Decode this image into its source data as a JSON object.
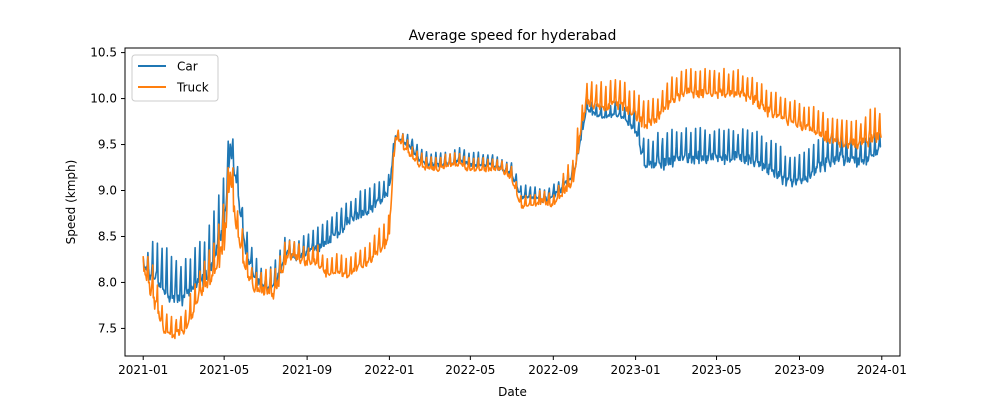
{
  "chart_data": {
    "type": "line",
    "title": "Average speed for hyderabad",
    "xlabel": "Date",
    "ylabel": "Speed (kmph)",
    "xlim": [
      "2020-12-05",
      "2024-01-28"
    ],
    "ylim": [
      7.2,
      10.55
    ],
    "x_ticks": [
      "2021-01",
      "2021-05",
      "2021-09",
      "2022-01",
      "2022-05",
      "2022-09",
      "2023-01",
      "2023-05",
      "2023-09",
      "2024-01"
    ],
    "y_ticks": [
      "7.5",
      "8.0",
      "8.5",
      "9.0",
      "9.5",
      "10.0",
      "10.5"
    ],
    "legend_position": "upper-left",
    "grid": false,
    "series": [
      {
        "name": "Car",
        "color": "#1f77b4",
        "x": [
          "2021-01-01",
          "2021-01-15",
          "2021-02-01",
          "2021-02-15",
          "2021-03-01",
          "2021-03-15",
          "2021-04-01",
          "2021-04-15",
          "2021-05-01",
          "2021-05-10",
          "2021-05-20",
          "2021-06-01",
          "2021-06-15",
          "2021-07-01",
          "2021-07-15",
          "2021-08-01",
          "2021-08-15",
          "2021-09-01",
          "2021-09-15",
          "2021-10-01",
          "2021-10-15",
          "2021-11-01",
          "2021-11-15",
          "2021-12-01",
          "2021-12-31",
          "2022-01-10",
          "2022-02-01",
          "2022-02-15",
          "2022-03-01",
          "2022-03-15",
          "2022-04-01",
          "2022-04-15",
          "2022-05-01",
          "2022-05-15",
          "2022-06-01",
          "2022-06-15",
          "2022-07-01",
          "2022-07-15",
          "2022-08-01",
          "2022-08-15",
          "2022-09-01",
          "2022-09-15",
          "2022-10-01",
          "2022-10-10",
          "2022-10-20",
          "2022-11-01",
          "2022-11-15",
          "2022-12-01",
          "2022-12-15",
          "2023-01-01",
          "2023-01-15",
          "2023-02-01",
          "2023-02-15",
          "2023-03-01",
          "2023-03-15",
          "2023-04-01",
          "2023-04-15",
          "2023-05-01",
          "2023-05-15",
          "2023-06-01",
          "2023-06-15",
          "2023-07-01",
          "2023-07-15",
          "2023-08-01",
          "2023-08-15",
          "2023-09-01",
          "2023-09-15",
          "2023-10-01",
          "2023-10-15",
          "2023-11-01",
          "2023-11-15",
          "2023-12-01",
          "2023-12-15",
          "2023-12-31"
        ],
        "y": [
          8.2,
          8.1,
          8.0,
          7.9,
          7.9,
          8.0,
          8.1,
          8.3,
          8.7,
          9.5,
          9.1,
          8.4,
          8.1,
          7.95,
          8.0,
          8.35,
          8.3,
          8.35,
          8.4,
          8.5,
          8.55,
          8.7,
          8.75,
          8.8,
          9.0,
          9.6,
          9.5,
          9.35,
          9.3,
          9.3,
          9.3,
          9.35,
          9.3,
          9.3,
          9.3,
          9.25,
          9.2,
          8.95,
          8.95,
          8.9,
          8.95,
          9.05,
          9.2,
          9.5,
          9.9,
          9.85,
          9.8,
          9.85,
          9.8,
          9.7,
          9.3,
          9.35,
          9.35,
          9.4,
          9.4,
          9.4,
          9.4,
          9.4,
          9.4,
          9.4,
          9.4,
          9.35,
          9.3,
          9.2,
          9.15,
          9.15,
          9.2,
          9.3,
          9.35,
          9.4,
          9.35,
          9.35,
          9.4,
          9.5
        ],
        "amplitude": [
          0.08,
          0.3,
          0.35,
          0.35,
          0.3,
          0.3,
          0.35,
          0.4,
          0.4,
          0.2,
          0.25,
          0.2,
          0.2,
          0.15,
          0.2,
          0.15,
          0.15,
          0.15,
          0.2,
          0.2,
          0.2,
          0.2,
          0.2,
          0.2,
          0.15,
          0.05,
          0.1,
          0.1,
          0.1,
          0.1,
          0.1,
          0.1,
          0.1,
          0.1,
          0.1,
          0.1,
          0.1,
          0.1,
          0.1,
          0.1,
          0.1,
          0.1,
          0.1,
          0.1,
          0.1,
          0.1,
          0.1,
          0.1,
          0.1,
          0.2,
          0.2,
          0.25,
          0.25,
          0.25,
          0.25,
          0.25,
          0.25,
          0.25,
          0.25,
          0.25,
          0.25,
          0.25,
          0.25,
          0.25,
          0.25,
          0.25,
          0.25,
          0.25,
          0.25,
          0.25,
          0.25,
          0.2,
          0.2,
          0.1
        ]
      },
      {
        "name": "Truck",
        "color": "#ff7f0e",
        "x": [
          "2021-01-01",
          "2021-01-15",
          "2021-02-01",
          "2021-02-15",
          "2021-03-01",
          "2021-03-15",
          "2021-04-01",
          "2021-04-15",
          "2021-05-01",
          "2021-05-10",
          "2021-05-20",
          "2021-06-01",
          "2021-06-15",
          "2021-07-01",
          "2021-07-15",
          "2021-08-01",
          "2021-08-15",
          "2021-09-01",
          "2021-09-15",
          "2021-10-01",
          "2021-10-15",
          "2021-11-01",
          "2021-11-15",
          "2021-12-01",
          "2021-12-31",
          "2022-01-10",
          "2022-02-01",
          "2022-02-15",
          "2022-03-01",
          "2022-03-15",
          "2022-04-01",
          "2022-04-15",
          "2022-05-01",
          "2022-05-15",
          "2022-06-01",
          "2022-06-15",
          "2022-07-01",
          "2022-07-15",
          "2022-08-01",
          "2022-08-15",
          "2022-09-01",
          "2022-09-15",
          "2022-10-01",
          "2022-10-10",
          "2022-10-20",
          "2022-11-01",
          "2022-11-15",
          "2022-12-01",
          "2022-12-15",
          "2023-01-01",
          "2023-01-15",
          "2023-02-01",
          "2023-02-15",
          "2023-03-01",
          "2023-03-15",
          "2023-04-01",
          "2023-04-15",
          "2023-05-01",
          "2023-05-15",
          "2023-06-01",
          "2023-06-15",
          "2023-07-01",
          "2023-07-15",
          "2023-08-01",
          "2023-08-15",
          "2023-09-01",
          "2023-09-15",
          "2023-10-01",
          "2023-10-15",
          "2023-11-01",
          "2023-11-15",
          "2023-12-01",
          "2023-12-15",
          "2023-12-31"
        ],
        "y": [
          8.2,
          7.9,
          7.5,
          7.45,
          7.5,
          7.7,
          8.0,
          8.1,
          8.5,
          9.2,
          8.6,
          8.2,
          7.95,
          7.95,
          7.9,
          8.3,
          8.3,
          8.25,
          8.25,
          8.1,
          8.15,
          8.1,
          8.2,
          8.25,
          8.5,
          9.6,
          9.4,
          9.3,
          9.25,
          9.25,
          9.3,
          9.3,
          9.25,
          9.25,
          9.25,
          9.25,
          9.15,
          8.85,
          8.85,
          8.9,
          8.85,
          9.0,
          9.15,
          9.6,
          10.0,
          9.95,
          9.95,
          10.0,
          9.95,
          9.85,
          9.75,
          9.8,
          9.95,
          10.05,
          10.1,
          10.1,
          10.1,
          10.1,
          10.1,
          10.1,
          10.05,
          10.0,
          9.9,
          9.85,
          9.8,
          9.75,
          9.7,
          9.65,
          9.6,
          9.55,
          9.55,
          9.55,
          9.6,
          9.65
        ],
        "amplitude": [
          0.1,
          0.3,
          0.15,
          0.15,
          0.15,
          0.2,
          0.2,
          0.3,
          0.4,
          0.3,
          0.25,
          0.2,
          0.15,
          0.2,
          0.2,
          0.2,
          0.15,
          0.15,
          0.15,
          0.15,
          0.15,
          0.15,
          0.15,
          0.15,
          0.2,
          0.1,
          0.1,
          0.1,
          0.1,
          0.1,
          0.1,
          0.1,
          0.1,
          0.1,
          0.1,
          0.1,
          0.1,
          0.1,
          0.1,
          0.1,
          0.1,
          0.15,
          0.2,
          0.2,
          0.2,
          0.2,
          0.2,
          0.2,
          0.2,
          0.2,
          0.2,
          0.2,
          0.2,
          0.2,
          0.2,
          0.2,
          0.2,
          0.2,
          0.2,
          0.2,
          0.2,
          0.2,
          0.2,
          0.2,
          0.2,
          0.2,
          0.2,
          0.2,
          0.2,
          0.2,
          0.2,
          0.2,
          0.3,
          0.2
        ]
      }
    ]
  }
}
